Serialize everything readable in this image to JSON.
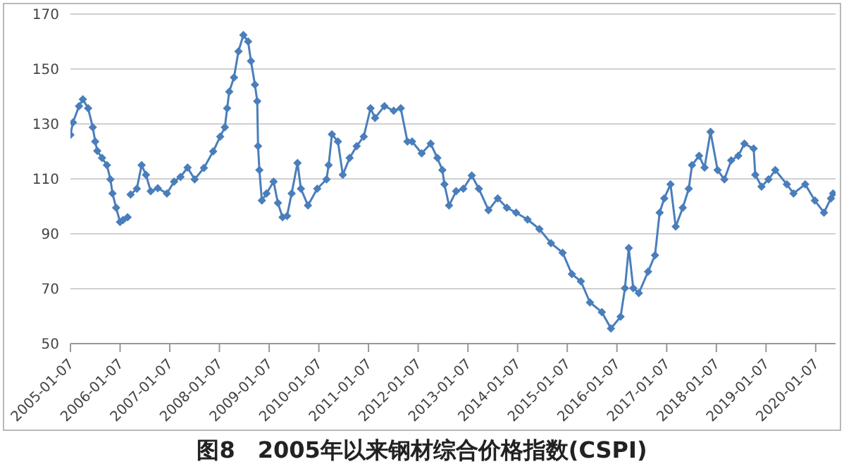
{
  "chart_data": {
    "type": "line",
    "title": "图8　2005年以来钢材综合价格指数(CSPI)",
    "x": [
      "2005-01-07",
      "2005-01-25",
      "2005-03-11",
      "2005-04-08",
      "2005-05-17",
      "2005-06-20",
      "2005-07-08",
      "2005-07-23",
      "2005-08-27",
      "2005-10-02",
      "2005-10-28",
      "2005-11-12",
      "2005-12-09",
      "2006-01-06",
      "2006-01-28",
      "2006-03-03",
      "2006-03-13",
      "2006-03-25",
      "2006-05-10",
      "2006-06-14",
      "2006-07-16",
      "2006-08-20",
      "2006-10-11",
      "2006-12-17",
      "2007-02-08",
      "2007-03-27",
      "2007-05-18",
      "2007-07-09",
      "2007-09-15",
      "2007-11-22",
      "2008-01-13",
      "2008-02-16",
      "2008-03-04",
      "2008-03-19",
      "2008-04-23",
      "2008-05-26",
      "2008-07-01",
      "2008-08-05",
      "2008-08-26",
      "2008-09-24",
      "2008-10-11",
      "2008-10-17",
      "2008-10-27",
      "2008-11-14",
      "2008-12-18",
      "2009-02-08",
      "2009-03-12",
      "2009-04-15",
      "2009-05-18",
      "2009-06-21",
      "2009-08-03",
      "2009-08-28",
      "2009-10-19",
      "2009-12-26",
      "2010-03-04",
      "2010-03-20",
      "2010-04-13",
      "2010-05-27",
      "2010-07-02",
      "2010-08-21",
      "2010-10-12",
      "2010-12-03",
      "2011-01-22",
      "2011-02-24",
      "2011-05-04",
      "2011-07-11",
      "2011-09-01",
      "2011-10-20",
      "2011-11-23",
      "2012-02-02",
      "2012-04-08",
      "2012-05-27",
      "2012-07-03",
      "2012-07-18",
      "2012-08-21",
      "2012-10-12",
      "2012-12-04",
      "2013-02-04",
      "2013-03-28",
      "2013-06-07",
      "2013-08-14",
      "2013-10-20",
      "2013-12-27",
      "2014-03-21",
      "2014-06-16",
      "2014-09-09",
      "2014-12-04",
      "2015-02-10",
      "2015-04-17",
      "2015-06-23",
      "2015-09-18",
      "2015-11-24",
      "2016-02-03",
      "2016-03-06",
      "2016-04-03",
      "2016-05-06",
      "2016-06-16",
      "2016-08-23",
      "2016-10-13",
      "2016-11-16",
      "2016-12-20",
      "2017-02-04",
      "2017-03-14",
      "2017-05-05",
      "2017-06-18",
      "2017-07-12",
      "2017-09-02",
      "2017-10-12",
      "2017-11-25",
      "2018-01-16",
      "2018-03-07",
      "2018-04-26",
      "2018-06-17",
      "2018-08-01",
      "2018-10-08",
      "2018-10-20",
      "2018-12-05",
      "2019-01-25",
      "2019-03-16",
      "2019-06-09",
      "2019-07-28",
      "2019-10-22",
      "2020-01-01",
      "2020-03-08",
      "2020-04-28",
      "2020-05-14"
    ],
    "series": [
      {
        "color": "#4a7ebb",
        "values": [
          126,
          130.5,
          136.5,
          139,
          135.7,
          128.8,
          123.6,
          120.2,
          117.6,
          115,
          109.8,
          104.7,
          99.5,
          94.3,
          95,
          96,
          null,
          104.3,
          106.4,
          115,
          111.5,
          105.5,
          106.6,
          104.7,
          109,
          110.7,
          114.1,
          109.8,
          114,
          120,
          125.4,
          128.8,
          135.7,
          141.7,
          146.9,
          156.4,
          162.4,
          160,
          152.9,
          144.3,
          138.3,
          121.9,
          113.2,
          102.1,
          104.7,
          109,
          101.2,
          96,
          96.5,
          104.7,
          115.8,
          106.4,
          100.3,
          106.4,
          109.8,
          115,
          126.2,
          123.6,
          111.5,
          117.6,
          121.9,
          125.4,
          135.7,
          132.2,
          136.5,
          134.8,
          135.7,
          123.6,
          123.6,
          119.3,
          122.8,
          117.6,
          113.2,
          108,
          100.3,
          105.5,
          106.4,
          111.2,
          106.4,
          98.6,
          102.9,
          99.5,
          97.7,
          95.2,
          91.7,
          86.6,
          83.1,
          75.3,
          72.7,
          65,
          61.5,
          55.5,
          59.8,
          70.2,
          84.8,
          70.2,
          68.4,
          76.2,
          82.2,
          97.7,
          102.9,
          108,
          92.6,
          99.5,
          106.4,
          115,
          118.4,
          114.1,
          127.1,
          113.2,
          109.8,
          116.7,
          118.4,
          122.8,
          121,
          111.5,
          107.2,
          109.8,
          113.2,
          108,
          104.7,
          108,
          102.1,
          97.7,
          102.9,
          104.7
        ]
      }
    ],
    "xlim": [
      "2005-01-07",
      "2020-06-01"
    ],
    "xticks": [
      "2005-01-07",
      "2006-01-07",
      "2007-01-07",
      "2008-01-07",
      "2009-01-07",
      "2010-01-07",
      "2011-01-07",
      "2012-01-07",
      "2013-01-07",
      "2014-01-07",
      "2015-01-07",
      "2016-01-07",
      "2017-01-07",
      "2018-01-07",
      "2019-01-07",
      "2020-01-07"
    ],
    "ylim": [
      50,
      170
    ],
    "yticks": [
      50,
      70,
      90,
      110,
      130,
      150,
      170
    ],
    "grid": "y",
    "legend": false,
    "marker": "diamond",
    "line_style": "solid"
  }
}
